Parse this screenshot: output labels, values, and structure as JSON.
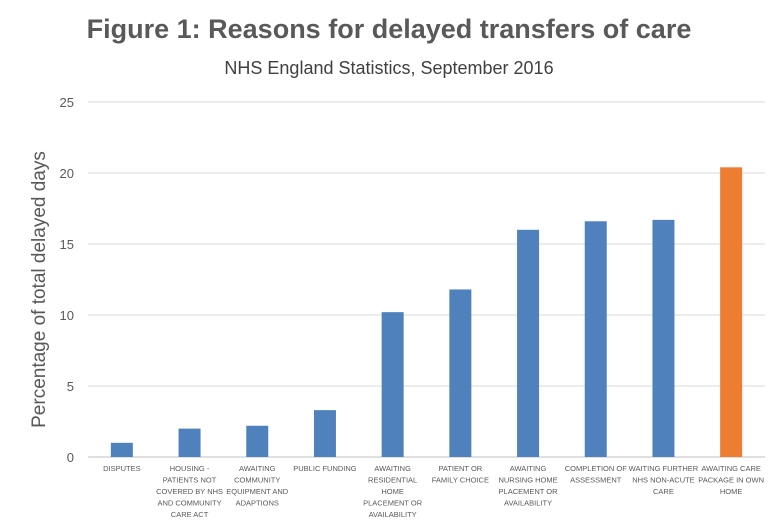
{
  "chart_data": {
    "type": "bar",
    "title": "Figure 1: Reasons for delayed transfers of care",
    "subtitle": "NHS England Statistics, September 2016",
    "ylabel": "Percentage of total delayed days",
    "xlabel": "",
    "ylim": [
      0,
      25
    ],
    "yticks": [
      0,
      5,
      10,
      15,
      20,
      25
    ],
    "grid": true,
    "categories": [
      [
        "DISPUTES"
      ],
      [
        "HOUSING -",
        "PATIENTS NOT",
        "COVERED BY NHS",
        "AND COMMUNITY",
        "CARE ACT"
      ],
      [
        "AWAITING",
        "COMMUNITY",
        "EQUIPMENT AND",
        "ADAPTIONS"
      ],
      [
        "PUBLIC FUNDING"
      ],
      [
        "AWAITING",
        "RESIDENTIAL",
        "HOME",
        "PLACEMENT OR",
        "AVAILABILITY"
      ],
      [
        "PATIENT OR",
        "FAMILY CHOICE"
      ],
      [
        "AWAITING",
        "NURSING HOME",
        "PLACEMENT OR",
        "AVAILABILITY"
      ],
      [
        "COMPLETION OF",
        "ASSESSMENT"
      ],
      [
        "WAITING FURTHER",
        "NHS NON-ACUTE",
        "CARE"
      ],
      [
        "AWAITING CARE",
        "PACKAGE IN OWN",
        "HOME"
      ]
    ],
    "values": [
      1.0,
      2.0,
      2.2,
      3.3,
      10.2,
      11.8,
      16.0,
      16.6,
      16.7,
      20.4
    ],
    "colors": [
      "#4f81bd",
      "#4f81bd",
      "#4f81bd",
      "#4f81bd",
      "#4f81bd",
      "#4f81bd",
      "#4f81bd",
      "#4f81bd",
      "#4f81bd",
      "#ed7d31"
    ]
  }
}
